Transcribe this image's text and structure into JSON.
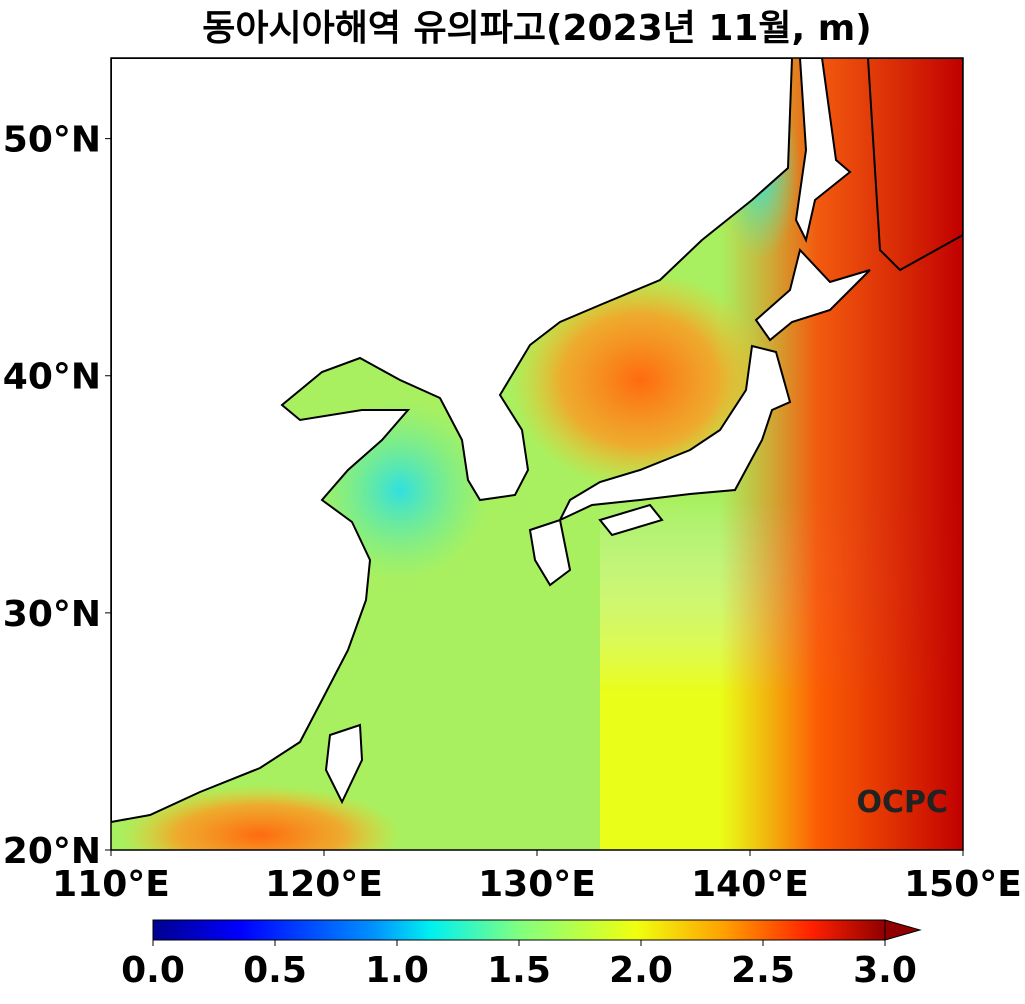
{
  "title": "동아시아해역 유의파고(2023년 11월, m)",
  "map": {
    "xlim": [
      110,
      150
    ],
    "ylim": [
      20,
      53.4
    ],
    "xticks": [
      {
        "value": 110,
        "label": "110°E"
      },
      {
        "value": 120,
        "label": "120°E"
      },
      {
        "value": 130,
        "label": "130°E"
      },
      {
        "value": 140,
        "label": "140°E"
      },
      {
        "value": 150,
        "label": "150°E"
      }
    ],
    "yticks": [
      {
        "value": 20,
        "label": "20°N"
      },
      {
        "value": 30,
        "label": "30°N"
      },
      {
        "value": 40,
        "label": "40°N"
      },
      {
        "value": 50,
        "label": "50°N"
      }
    ],
    "logo": "OCPC"
  },
  "colorbar": {
    "range": [
      0,
      3.0
    ],
    "ticks": [
      {
        "value": 0,
        "label": "0.0"
      },
      {
        "value": 0.5,
        "label": "0.5"
      },
      {
        "value": 1.0,
        "label": "1.0"
      },
      {
        "value": 1.5,
        "label": "1.5"
      },
      {
        "value": 2.0,
        "label": "2.0"
      },
      {
        "value": 2.5,
        "label": "2.5"
      },
      {
        "value": 3.0,
        "label": "3.0"
      }
    ]
  }
}
